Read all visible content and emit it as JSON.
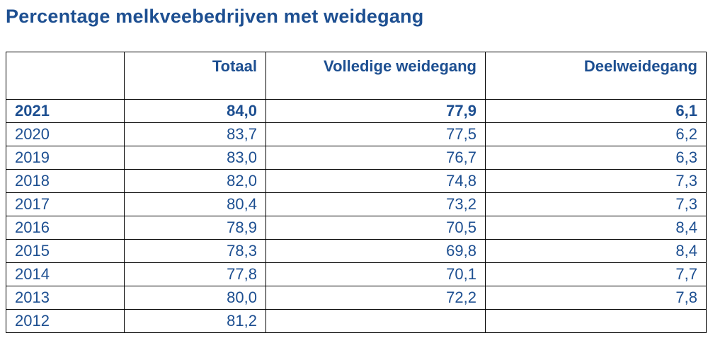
{
  "title": "Percentage melkveebedrijven met weidegang",
  "colors": {
    "accent": "#1d4f91",
    "border": "#000000"
  },
  "table": {
    "columns": [
      "",
      "Totaal",
      "Volledige weidegang",
      "Deelweidegang"
    ],
    "rows": [
      {
        "year": "2021",
        "totaal": "84,0",
        "volledig": "77,9",
        "deel": "6,1",
        "bold": true
      },
      {
        "year": "2020",
        "totaal": "83,7",
        "volledig": "77,5",
        "deel": "6,2",
        "bold": false
      },
      {
        "year": "2019",
        "totaal": "83,0",
        "volledig": "76,7",
        "deel": "6,3",
        "bold": false
      },
      {
        "year": "2018",
        "totaal": "82,0",
        "volledig": "74,8",
        "deel": "7,3",
        "bold": false
      },
      {
        "year": "2017",
        "totaal": "80,4",
        "volledig": "73,2",
        "deel": "7,3",
        "bold": false
      },
      {
        "year": "2016",
        "totaal": "78,9",
        "volledig": "70,5",
        "deel": "8,4",
        "bold": false
      },
      {
        "year": "2015",
        "totaal": "78,3",
        "volledig": "69,8",
        "deel": "8,4",
        "bold": false
      },
      {
        "year": "2014",
        "totaal": "77,8",
        "volledig": "70,1",
        "deel": "7,7",
        "bold": false
      },
      {
        "year": "2013",
        "totaal": "80,0",
        "volledig": "72,2",
        "deel": "7,8",
        "bold": false
      },
      {
        "year": "2012",
        "totaal": "81,2",
        "volledig": "",
        "deel": "",
        "bold": false
      }
    ]
  },
  "chart_data": {
    "type": "table",
    "title": "Percentage melkveebedrijven met weidegang",
    "categories": [
      2021,
      2020,
      2019,
      2018,
      2017,
      2016,
      2015,
      2014,
      2013,
      2012
    ],
    "series": [
      {
        "name": "Totaal",
        "values": [
          84.0,
          83.7,
          83.0,
          82.0,
          80.4,
          78.9,
          78.3,
          77.8,
          80.0,
          81.2
        ]
      },
      {
        "name": "Volledige weidegang",
        "values": [
          77.9,
          77.5,
          76.7,
          74.8,
          73.2,
          70.5,
          69.8,
          70.1,
          72.2,
          null
        ]
      },
      {
        "name": "Deelweidegang",
        "values": [
          6.1,
          6.2,
          6.3,
          7.3,
          7.3,
          8.4,
          8.4,
          7.7,
          7.8,
          null
        ]
      }
    ]
  }
}
